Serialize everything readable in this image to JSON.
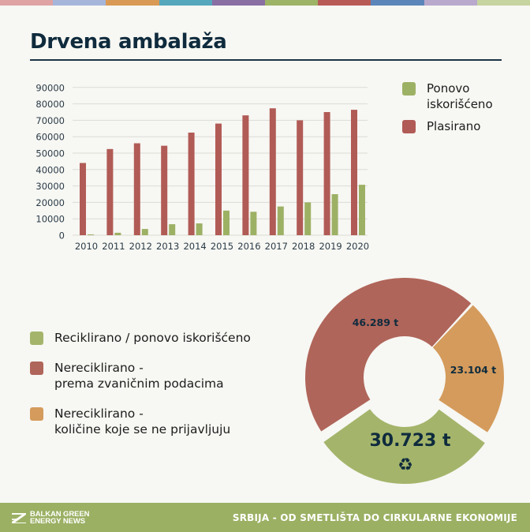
{
  "stripe_colors": [
    "#DFA3A3",
    "#A6B6DB",
    "#D99A55",
    "#55A7BC",
    "#8A6FA3",
    "#9DB466",
    "#B85B57",
    "#5C86BA",
    "#B9A9CC",
    "#C6D4A0"
  ],
  "header": {
    "title": "Drvena ambalaža"
  },
  "colors": {
    "plasirano": "#B15B56",
    "ponovo": "#9DB165",
    "pie_red": "#B0655A",
    "pie_orange": "#D49B5C",
    "pie_green": "#A4B56B",
    "text_dark": "#0F2B3D"
  },
  "bar_legend": [
    {
      "label_line1": "Ponovo",
      "label_line2": "iskorišćeno",
      "color": "#9DB165"
    },
    {
      "label_line1": "Plasirano",
      "label_line2": "",
      "color": "#B15B56"
    }
  ],
  "pie_legend": [
    {
      "label_line1": "Reciklirano / ponovo iskorišćeno",
      "label_line2": "",
      "color": "#A4B56B"
    },
    {
      "label_line1": "Nereciklirano -",
      "label_line2": "prema zvaničnim podacima",
      "color": "#B0655A"
    },
    {
      "label_line1": "Nereciklirano -",
      "label_line2": "količine koje se ne prijavljuju",
      "color": "#D49B5C"
    }
  ],
  "pie_labels": {
    "red": "46.289 t",
    "orange": "23.104 t",
    "green": "30.723 t"
  },
  "footer": {
    "logo_line1": "BALKAN GREEN",
    "logo_line2": "ENERGY NEWS",
    "title": "SRBIJA - OD SMETLIŠTA DO CIRKULARNE EKONOMIJE"
  },
  "chart_data": [
    {
      "type": "bar",
      "title": "Drvena ambalaža",
      "xlabel": "",
      "ylabel": "",
      "categories": [
        "2010",
        "2011",
        "2012",
        "2013",
        "2014",
        "2015",
        "2016",
        "2017",
        "2018",
        "2019",
        "2020"
      ],
      "series": [
        {
          "name": "Plasirano",
          "color": "#B15B56",
          "values": [
            44000,
            52500,
            56000,
            54500,
            62500,
            68000,
            73000,
            77300,
            70000,
            75000,
            76400
          ]
        },
        {
          "name": "Ponovo iskorišćeno",
          "color": "#9DB165",
          "values": [
            500,
            1500,
            3800,
            6700,
            7200,
            15000,
            14300,
            17500,
            20000,
            25000,
            30723
          ]
        }
      ],
      "yticks": [
        0,
        10000,
        20000,
        30000,
        40000,
        50000,
        60000,
        70000,
        80000,
        90000
      ],
      "ylim": [
        0,
        90000
      ],
      "grid": true,
      "legend_position": "right"
    },
    {
      "type": "pie",
      "subtype": "donut",
      "labels": [
        "Reciklirano / ponovo iskorišćeno",
        "Nereciklirano - prema zvaničnim podacima",
        "Nereciklirano - količine koje se ne prijavljuju"
      ],
      "values": [
        30723,
        46289,
        23104
      ],
      "value_labels": [
        "30.723 t",
        "46.289 t",
        "23.104 t"
      ],
      "colors": [
        "#A4B56B",
        "#B0655A",
        "#D49B5C"
      ],
      "exploded": [
        true,
        false,
        false
      ],
      "legend_position": "left"
    }
  ]
}
